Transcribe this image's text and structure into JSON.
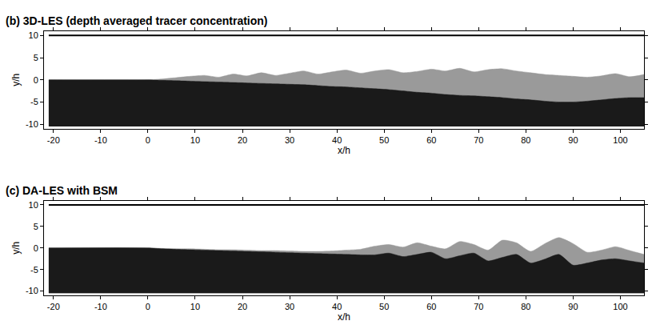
{
  "chart_data": [
    {
      "type": "area",
      "title": "(b) 3D-LES (depth averaged tracer concentration)",
      "x_label": "x/h",
      "y_label": "y/h",
      "xlim": [
        -22,
        105
      ],
      "ylim": [
        -11,
        11
      ],
      "xticks": [
        -20,
        -10,
        0,
        10,
        20,
        30,
        40,
        50,
        60,
        70,
        80,
        90,
        100
      ],
      "yticks": [
        -10,
        -5,
        0,
        5,
        10
      ],
      "grid": false,
      "series": [
        {
          "type": "area",
          "color": "#9a9a9a",
          "base": -10.5,
          "x": [
            -21,
            0,
            3,
            6,
            9,
            12,
            15,
            18,
            21,
            24,
            27,
            30,
            33,
            36,
            39,
            42,
            45,
            48,
            51,
            54,
            57,
            60,
            63,
            66,
            69,
            72,
            75,
            78,
            81,
            84,
            87,
            90,
            93,
            96,
            99,
            102,
            105
          ],
          "values": [
            0,
            0,
            0.2,
            0.5,
            0.8,
            1.0,
            0.6,
            1.3,
            0.9,
            1.6,
            1.0,
            1.5,
            2.0,
            1.3,
            1.8,
            2.2,
            1.5,
            2.0,
            2.3,
            1.6,
            1.9,
            2.4,
            2.0,
            2.6,
            1.8,
            2.3,
            2.5,
            2.0,
            1.6,
            1.2,
            1.0,
            0.8,
            0.6,
            0.9,
            1.4,
            0.7,
            1.2
          ]
        },
        {
          "type": "area",
          "color": "#1a1a1a",
          "base": -10.5,
          "x": [
            -21,
            0,
            3,
            6,
            9,
            12,
            15,
            18,
            21,
            24,
            27,
            30,
            33,
            36,
            39,
            42,
            45,
            48,
            51,
            54,
            57,
            60,
            63,
            66,
            69,
            72,
            75,
            78,
            81,
            84,
            87,
            90,
            93,
            96,
            99,
            102,
            105
          ],
          "values": [
            0,
            0,
            -0.1,
            -0.2,
            -0.3,
            -0.4,
            -0.5,
            -0.6,
            -0.7,
            -0.8,
            -0.9,
            -1.0,
            -1.1,
            -1.3,
            -1.5,
            -1.6,
            -1.8,
            -2.0,
            -2.2,
            -2.5,
            -2.8,
            -3.0,
            -3.3,
            -3.5,
            -3.6,
            -3.8,
            -4.0,
            -4.3,
            -4.5,
            -4.8,
            -5.0,
            -5.0,
            -4.8,
            -4.5,
            -4.2,
            -4.0,
            -4.0
          ]
        },
        {
          "type": "line",
          "color": "#000000",
          "x": [
            -21,
            105
          ],
          "values": [
            10,
            10
          ]
        }
      ]
    },
    {
      "type": "area",
      "title": "(c) DA-LES with BSM",
      "x_label": "x/h",
      "y_label": "y/h",
      "xlim": [
        -22,
        105
      ],
      "ylim": [
        -11,
        11
      ],
      "xticks": [
        -20,
        -10,
        0,
        10,
        20,
        30,
        40,
        50,
        60,
        70,
        80,
        90,
        100
      ],
      "yticks": [
        -10,
        -5,
        0,
        5,
        10
      ],
      "grid": false,
      "series": [
        {
          "type": "area",
          "color": "#9a9a9a",
          "base": -10.5,
          "x": [
            -21,
            0,
            3,
            6,
            9,
            12,
            15,
            18,
            21,
            24,
            27,
            30,
            33,
            36,
            39,
            42,
            45,
            48,
            51,
            54,
            57,
            60,
            63,
            66,
            69,
            72,
            75,
            78,
            81,
            84,
            87,
            90,
            93,
            96,
            99,
            102,
            105
          ],
          "values": [
            0,
            0,
            -0.1,
            -0.2,
            -0.2,
            -0.3,
            -0.4,
            -0.4,
            -0.5,
            -0.6,
            -0.6,
            -0.7,
            -0.8,
            -0.8,
            -0.7,
            -0.5,
            -0.3,
            0.4,
            0.8,
            0.2,
            1.2,
            0.4,
            -0.2,
            1.5,
            0.8,
            -0.5,
            1.8,
            1.2,
            -0.8,
            1.0,
            2.4,
            1.0,
            -1.0,
            -0.5,
            0.3,
            -0.6,
            -1.5
          ]
        },
        {
          "type": "area",
          "color": "#1a1a1a",
          "base": -10.5,
          "x": [
            -21,
            0,
            3,
            6,
            9,
            12,
            15,
            18,
            21,
            24,
            27,
            30,
            33,
            36,
            39,
            42,
            45,
            48,
            51,
            54,
            57,
            60,
            63,
            66,
            69,
            72,
            75,
            78,
            81,
            84,
            87,
            90,
            93,
            96,
            99,
            102,
            105
          ],
          "values": [
            0,
            0,
            -0.2,
            -0.3,
            -0.4,
            -0.5,
            -0.6,
            -0.7,
            -0.8,
            -0.9,
            -1.0,
            -1.1,
            -1.2,
            -1.3,
            -1.4,
            -1.5,
            -1.6,
            -1.6,
            -1.2,
            -2.0,
            -1.5,
            -1.0,
            -2.5,
            -1.8,
            -1.2,
            -3.0,
            -2.2,
            -1.5,
            -3.5,
            -2.6,
            -1.5,
            -4.0,
            -3.5,
            -2.8,
            -2.5,
            -3.0,
            -3.5
          ]
        },
        {
          "type": "line",
          "color": "#000000",
          "x": [
            -21,
            105
          ],
          "values": [
            10,
            10
          ]
        }
      ]
    }
  ]
}
